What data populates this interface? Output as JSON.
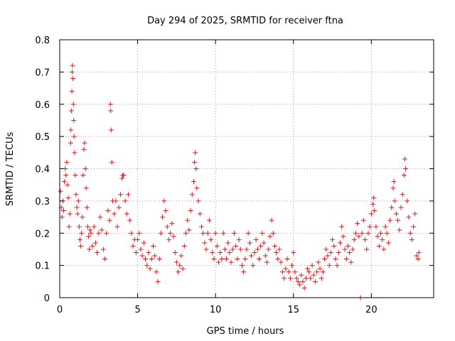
{
  "chart_data": {
    "type": "scatter",
    "title": "Day 294 of 2025, SRMTID for receiver ftna",
    "xlabel": "GPS time / hours",
    "ylabel": "SRMTID / TECUs",
    "xlim": [
      0,
      24
    ],
    "ylim": [
      0,
      0.8
    ],
    "xticks": [
      0,
      5,
      10,
      15,
      20
    ],
    "yticks": [
      0,
      0.1,
      0.2,
      0.3,
      0.4,
      0.5,
      0.6,
      0.7,
      0.8
    ],
    "xtick_labels": [
      "0",
      "5",
      "10",
      "15",
      "20"
    ],
    "ytick_labels": [
      "0",
      "0.1",
      "0.2",
      "0.3",
      "0.4",
      "0.5",
      "0.6",
      "0.7",
      "0.8"
    ],
    "grid": true,
    "marker": "plus",
    "color": "#e8141c",
    "series": [
      {
        "name": "SRMTID",
        "points": [
          [
            0.05,
            0.33
          ],
          [
            0.1,
            0.28
          ],
          [
            0.15,
            0.25
          ],
          [
            0.2,
            0.3
          ],
          [
            0.25,
            0.27
          ],
          [
            0.3,
            0.36
          ],
          [
            0.35,
            0.4
          ],
          [
            0.4,
            0.38
          ],
          [
            0.45,
            0.42
          ],
          [
            0.5,
            0.35
          ],
          [
            0.55,
            0.31
          ],
          [
            0.6,
            0.22
          ],
          [
            0.65,
            0.26
          ],
          [
            0.7,
            0.48
          ],
          [
            0.72,
            0.52
          ],
          [
            0.75,
            0.58
          ],
          [
            0.78,
            0.64
          ],
          [
            0.8,
            0.7
          ],
          [
            0.82,
            0.72
          ],
          [
            0.85,
            0.68
          ],
          [
            0.88,
            0.6
          ],
          [
            0.9,
            0.55
          ],
          [
            0.92,
            0.5
          ],
          [
            0.95,
            0.45
          ],
          [
            1.0,
            0.38
          ],
          [
            1.05,
            0.32
          ],
          [
            1.1,
            0.28
          ],
          [
            1.15,
            0.26
          ],
          [
            1.2,
            0.3
          ],
          [
            1.25,
            0.22
          ],
          [
            1.3,
            0.18
          ],
          [
            1.35,
            0.16
          ],
          [
            1.4,
            0.2
          ],
          [
            1.45,
            0.25
          ],
          [
            1.5,
            0.38
          ],
          [
            1.55,
            0.46
          ],
          [
            1.6,
            0.48
          ],
          [
            1.65,
            0.4
          ],
          [
            1.7,
            0.34
          ],
          [
            1.75,
            0.28
          ],
          [
            1.8,
            0.22
          ],
          [
            1.85,
            0.19
          ],
          [
            1.9,
            0.15
          ],
          [
            1.95,
            0.21
          ],
          [
            2.0,
            0.2
          ],
          [
            2.1,
            0.16
          ],
          [
            2.2,
            0.22
          ],
          [
            2.3,
            0.17
          ],
          [
            2.4,
            0.14
          ],
          [
            2.5,
            0.2
          ],
          [
            2.6,
            0.25
          ],
          [
            2.7,
            0.21
          ],
          [
            2.8,
            0.15
          ],
          [
            2.9,
            0.12
          ],
          [
            3.0,
            0.2
          ],
          [
            3.1,
            0.27
          ],
          [
            3.2,
            0.24
          ],
          [
            3.25,
            0.6
          ],
          [
            3.27,
            0.58
          ],
          [
            3.3,
            0.52
          ],
          [
            3.35,
            0.42
          ],
          [
            3.4,
            0.3
          ],
          [
            3.5,
            0.26
          ],
          [
            3.6,
            0.3
          ],
          [
            3.7,
            0.22
          ],
          [
            3.8,
            0.28
          ],
          [
            3.9,
            0.32
          ],
          [
            4.0,
            0.37
          ],
          [
            4.05,
            0.38
          ],
          [
            4.1,
            0.38
          ],
          [
            4.2,
            0.3
          ],
          [
            4.3,
            0.26
          ],
          [
            4.4,
            0.32
          ],
          [
            4.5,
            0.24
          ],
          [
            4.6,
            0.2
          ],
          [
            4.7,
            0.16
          ],
          [
            4.8,
            0.18
          ],
          [
            4.9,
            0.14
          ],
          [
            5.0,
            0.18
          ],
          [
            5.1,
            0.2
          ],
          [
            5.2,
            0.15
          ],
          [
            5.3,
            0.13
          ],
          [
            5.4,
            0.17
          ],
          [
            5.5,
            0.12
          ],
          [
            5.6,
            0.1
          ],
          [
            5.7,
            0.14
          ],
          [
            5.8,
            0.09
          ],
          [
            5.9,
            0.12
          ],
          [
            6.0,
            0.16
          ],
          [
            6.1,
            0.13
          ],
          [
            6.2,
            0.08
          ],
          [
            6.3,
            0.05
          ],
          [
            6.4,
            0.12
          ],
          [
            6.5,
            0.2
          ],
          [
            6.6,
            0.25
          ],
          [
            6.7,
            0.3
          ],
          [
            6.8,
            0.27
          ],
          [
            6.9,
            0.22
          ],
          [
            7.0,
            0.18
          ],
          [
            7.1,
            0.2
          ],
          [
            7.2,
            0.23
          ],
          [
            7.3,
            0.19
          ],
          [
            7.4,
            0.14
          ],
          [
            7.5,
            0.11
          ],
          [
            7.6,
            0.08
          ],
          [
            7.7,
            0.1
          ],
          [
            7.8,
            0.13
          ],
          [
            7.9,
            0.09
          ],
          [
            8.0,
            0.16
          ],
          [
            8.1,
            0.2
          ],
          [
            8.2,
            0.24
          ],
          [
            8.3,
            0.21
          ],
          [
            8.4,
            0.27
          ],
          [
            8.5,
            0.32
          ],
          [
            8.6,
            0.36
          ],
          [
            8.65,
            0.42
          ],
          [
            8.7,
            0.45
          ],
          [
            8.75,
            0.4
          ],
          [
            8.8,
            0.34
          ],
          [
            8.9,
            0.3
          ],
          [
            9.0,
            0.26
          ],
          [
            9.1,
            0.22
          ],
          [
            9.2,
            0.2
          ],
          [
            9.3,
            0.17
          ],
          [
            9.4,
            0.15
          ],
          [
            9.5,
            0.2
          ],
          [
            9.6,
            0.24
          ],
          [
            9.7,
            0.18
          ],
          [
            9.8,
            0.14
          ],
          [
            9.9,
            0.12
          ],
          [
            10.0,
            0.2
          ],
          [
            10.1,
            0.16
          ],
          [
            10.2,
            0.11
          ],
          [
            10.3,
            0.14
          ],
          [
            10.4,
            0.12
          ],
          [
            10.5,
            0.2
          ],
          [
            10.6,
            0.15
          ],
          [
            10.7,
            0.12
          ],
          [
            10.8,
            0.17
          ],
          [
            10.9,
            0.14
          ],
          [
            11.0,
            0.11
          ],
          [
            11.1,
            0.15
          ],
          [
            11.2,
            0.2
          ],
          [
            11.3,
            0.16
          ],
          [
            11.4,
            0.12
          ],
          [
            11.5,
            0.18
          ],
          [
            11.6,
            0.15
          ],
          [
            11.7,
            0.1
          ],
          [
            11.8,
            0.08
          ],
          [
            11.9,
            0.12
          ],
          [
            12.0,
            0.15
          ],
          [
            12.1,
            0.2
          ],
          [
            12.2,
            0.17
          ],
          [
            12.3,
            0.13
          ],
          [
            12.4,
            0.1
          ],
          [
            12.5,
            0.14
          ],
          [
            12.6,
            0.18
          ],
          [
            12.7,
            0.15
          ],
          [
            12.8,
            0.12
          ],
          [
            12.9,
            0.16
          ],
          [
            13.0,
            0.2
          ],
          [
            13.1,
            0.17
          ],
          [
            13.2,
            0.13
          ],
          [
            13.3,
            0.11
          ],
          [
            13.4,
            0.15
          ],
          [
            13.5,
            0.19
          ],
          [
            13.6,
            0.24
          ],
          [
            13.7,
            0.2
          ],
          [
            13.8,
            0.16
          ],
          [
            13.9,
            0.14
          ],
          [
            14.0,
            0.12
          ],
          [
            14.1,
            0.15
          ],
          [
            14.2,
            0.11
          ],
          [
            14.3,
            0.08
          ],
          [
            14.4,
            0.06
          ],
          [
            14.5,
            0.09
          ],
          [
            14.6,
            0.12
          ],
          [
            14.7,
            0.08
          ],
          [
            14.8,
            0.06
          ],
          [
            14.9,
            0.1
          ],
          [
            15.0,
            0.14
          ],
          [
            15.1,
            0.08
          ],
          [
            15.2,
            0.06
          ],
          [
            15.3,
            0.05
          ],
          [
            15.4,
            0.04
          ],
          [
            15.5,
            0.07
          ],
          [
            15.6,
            0.05
          ],
          [
            15.7,
            0.03
          ],
          [
            15.8,
            0.06
          ],
          [
            15.9,
            0.09
          ],
          [
            16.0,
            0.08
          ],
          [
            16.1,
            0.06
          ],
          [
            16.2,
            0.1
          ],
          [
            16.3,
            0.07
          ],
          [
            16.4,
            0.05
          ],
          [
            16.5,
            0.08
          ],
          [
            16.6,
            0.11
          ],
          [
            16.7,
            0.09
          ],
          [
            16.8,
            0.06
          ],
          [
            16.9,
            0.08
          ],
          [
            17.0,
            0.12
          ],
          [
            17.1,
            0.15
          ],
          [
            17.2,
            0.13
          ],
          [
            17.3,
            0.1
          ],
          [
            17.4,
            0.14
          ],
          [
            17.5,
            0.18
          ],
          [
            17.6,
            0.16
          ],
          [
            17.7,
            0.12
          ],
          [
            17.8,
            0.1
          ],
          [
            17.9,
            0.14
          ],
          [
            18.0,
            0.17
          ],
          [
            18.1,
            0.22
          ],
          [
            18.2,
            0.19
          ],
          [
            18.3,
            0.15
          ],
          [
            18.4,
            0.12
          ],
          [
            18.5,
            0.16
          ],
          [
            18.6,
            0.14
          ],
          [
            18.7,
            0.11
          ],
          [
            18.8,
            0.15
          ],
          [
            18.9,
            0.18
          ],
          [
            19.0,
            0.2
          ],
          [
            19.1,
            0.23
          ],
          [
            19.2,
            0.19
          ],
          [
            19.3,
            0.0
          ],
          [
            19.4,
            0.2
          ],
          [
            19.5,
            0.24
          ],
          [
            19.6,
            0.18
          ],
          [
            19.7,
            0.15
          ],
          [
            19.8,
            0.2
          ],
          [
            19.9,
            0.22
          ],
          [
            20.0,
            0.26
          ],
          [
            20.1,
            0.29
          ],
          [
            20.15,
            0.31
          ],
          [
            20.2,
            0.27
          ],
          [
            20.3,
            0.22
          ],
          [
            20.4,
            0.19
          ],
          [
            20.5,
            0.16
          ],
          [
            20.6,
            0.2
          ],
          [
            20.7,
            0.18
          ],
          [
            20.8,
            0.15
          ],
          [
            20.9,
            0.22
          ],
          [
            21.0,
            0.2
          ],
          [
            21.1,
            0.17
          ],
          [
            21.2,
            0.24
          ],
          [
            21.3,
            0.28
          ],
          [
            21.4,
            0.34
          ],
          [
            21.45,
            0.36
          ],
          [
            21.5,
            0.3
          ],
          [
            21.6,
            0.26
          ],
          [
            21.7,
            0.24
          ],
          [
            21.8,
            0.21
          ],
          [
            21.9,
            0.28
          ],
          [
            22.0,
            0.32
          ],
          [
            22.1,
            0.38
          ],
          [
            22.15,
            0.43
          ],
          [
            22.2,
            0.4
          ],
          [
            22.3,
            0.3
          ],
          [
            22.4,
            0.25
          ],
          [
            22.5,
            0.2
          ],
          [
            22.6,
            0.18
          ],
          [
            22.7,
            0.22
          ],
          [
            22.8,
            0.26
          ],
          [
            22.9,
            0.13
          ],
          [
            23.0,
            0.12
          ],
          [
            23.05,
            0.14
          ]
        ]
      }
    ]
  }
}
